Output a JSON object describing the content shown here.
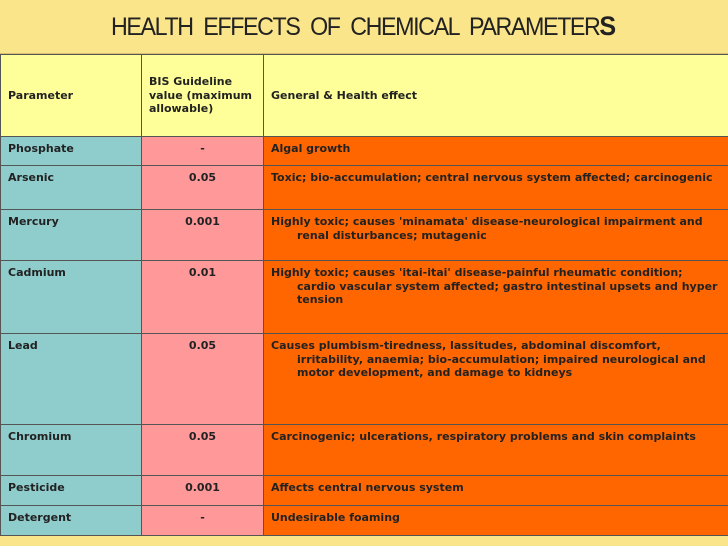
{
  "title": "HEALTH EFFECTS OF CHEMICAL PARAMETER",
  "title_last": "S",
  "headers": {
    "parameter": "Parameter",
    "guideline": "BIS Guideline value (maximum allowable)",
    "effect": "General & Health effect"
  },
  "rows": [
    {
      "parameter": "Phosphate",
      "value": "-",
      "effect": "Algal growth"
    },
    {
      "parameter": "Arsenic",
      "value": "0.05",
      "effect": "Toxic; bio-accumulation; central nervous system affected; carcinogenic"
    },
    {
      "parameter": "Mercury",
      "value": "0.001",
      "effect": "Highly toxic; causes 'minamata' disease-neurological impairment and renal disturbances; mutagenic"
    },
    {
      "parameter": "Cadmium",
      "value": "0.01",
      "effect": "Highly toxic; causes 'itai-itai' disease-painful rheumatic condition; cardio vascular system affected; gastro intestinal upsets and hyper tension"
    },
    {
      "parameter": "Lead",
      "value": "0.05",
      "effect": "Causes plumbism-tiredness, lassitudes, abdominal discomfort, irritability, anaemia; bio-accumulation; impaired neurological and motor development, and damage to kidneys"
    },
    {
      "parameter": "Chromium",
      "value": "0.05",
      "effect": "Carcinogenic; ulcerations, respiratory problems and skin complaints"
    },
    {
      "parameter": "Pesticide",
      "value": "0.001",
      "effect": "Affects central nervous system"
    },
    {
      "parameter": "Detergent",
      "value": "-",
      "effect": "Undesirable foaming"
    }
  ],
  "colors": {
    "title_bg": "#fbe58a",
    "header_bg": "#ffff99",
    "param_bg": "#8fcccc",
    "value_bg": "#ff9999",
    "effect_bg": "#ff6600"
  }
}
